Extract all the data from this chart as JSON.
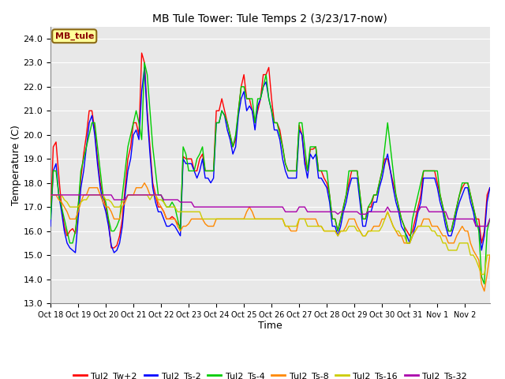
{
  "title": "MB Tule Tower: Tule Temps 2 (3/23/17-now)",
  "xlabel": "Time",
  "ylabel": "Temperature (C)",
  "ylim": [
    13.0,
    24.5
  ],
  "yticks": [
    13.0,
    14.0,
    15.0,
    16.0,
    17.0,
    18.0,
    19.0,
    20.0,
    21.0,
    22.0,
    23.0,
    24.0
  ],
  "bg_color": "#e8e8e8",
  "grid_color": "white",
  "series_colors": {
    "Tul2_Tw+2": "#ff0000",
    "Tul2_Ts-2": "#0000ff",
    "Tul2_Ts-4": "#00cc00",
    "Tul2_Ts-8": "#ff8800",
    "Tul2_Ts-16": "#cccc00",
    "Tul2_Ts-32": "#aa00aa"
  },
  "xtick_labels": [
    "Oct 18",
    "Oct 19",
    "Oct 20",
    "Oct 21",
    "Oct 22",
    "Oct 23",
    "Oct 24",
    "Oct 25",
    "Oct 26",
    "Oct 27",
    "Oct 28",
    "Oct 29",
    "Oct 30",
    "Oct 31",
    "Nov 1",
    "Nov 2"
  ],
  "station_label": "MB_tule",
  "Tul2_Tw+2": [
    16.5,
    19.5,
    19.7,
    18.3,
    17.0,
    16.2,
    15.8,
    16.0,
    16.1,
    15.9,
    17.0,
    18.2,
    19.2,
    20.0,
    21.0,
    21.0,
    20.2,
    19.0,
    18.0,
    17.5,
    17.0,
    16.4,
    15.3,
    15.3,
    15.4,
    15.8,
    16.5,
    17.8,
    19.0,
    19.5,
    20.5,
    20.5,
    20.0,
    23.4,
    23.0,
    21.0,
    19.5,
    18.0,
    17.5,
    17.0,
    17.0,
    16.8,
    16.5,
    16.5,
    16.6,
    16.5,
    16.3,
    16.2,
    19.1,
    19.0,
    19.0,
    19.0,
    18.5,
    18.5,
    19.0,
    19.2,
    18.5,
    18.5,
    18.5,
    18.5,
    21.0,
    21.0,
    21.5,
    21.0,
    20.5,
    20.0,
    19.5,
    19.8,
    21.0,
    22.0,
    22.5,
    21.5,
    21.5,
    21.0,
    20.5,
    21.0,
    21.5,
    22.5,
    22.5,
    22.8,
    21.5,
    20.5,
    20.5,
    20.2,
    19.5,
    18.8,
    18.5,
    18.5,
    18.5,
    18.5,
    20.4,
    20.0,
    19.0,
    18.5,
    19.4,
    19.4,
    19.5,
    18.5,
    18.5,
    18.2,
    18.0,
    17.5,
    16.5,
    16.5,
    16.0,
    16.5,
    17.0,
    17.5,
    18.0,
    18.5,
    18.5,
    18.5,
    17.5,
    16.5,
    16.5,
    17.0,
    17.0,
    17.5,
    17.5,
    18.0,
    18.5,
    19.0,
    19.0,
    18.5,
    18.0,
    17.5,
    17.0,
    16.5,
    16.2,
    16.0,
    15.8,
    16.0,
    16.5,
    17.0,
    17.5,
    18.5,
    18.5,
    18.5,
    18.5,
    18.5,
    18.0,
    17.5,
    17.0,
    16.5,
    16.0,
    16.0,
    16.5,
    17.0,
    17.5,
    17.8,
    18.0,
    18.0,
    17.5,
    17.0,
    16.5,
    16.5,
    15.5,
    16.0,
    17.5,
    17.8
  ],
  "Tul2_Ts-2": [
    16.2,
    18.5,
    18.8,
    17.5,
    16.8,
    16.0,
    15.5,
    15.3,
    15.2,
    15.1,
    16.5,
    17.8,
    18.5,
    19.5,
    20.5,
    20.8,
    20.0,
    18.8,
    17.8,
    17.2,
    16.8,
    16.2,
    15.4,
    15.1,
    15.2,
    15.5,
    16.2,
    17.5,
    18.5,
    19.0,
    20.0,
    20.2,
    19.8,
    21.8,
    22.8,
    20.8,
    19.2,
    17.8,
    17.2,
    16.8,
    16.8,
    16.5,
    16.2,
    16.2,
    16.3,
    16.2,
    16.0,
    15.8,
    19.0,
    18.8,
    18.8,
    18.8,
    18.5,
    18.2,
    18.5,
    19.0,
    18.2,
    18.2,
    18.0,
    18.2,
    20.5,
    20.5,
    21.0,
    20.8,
    20.2,
    19.8,
    19.2,
    19.5,
    20.8,
    21.5,
    21.8,
    21.0,
    21.2,
    21.0,
    20.2,
    21.2,
    21.5,
    22.0,
    22.2,
    21.5,
    21.0,
    20.2,
    20.2,
    19.8,
    19.0,
    18.5,
    18.2,
    18.2,
    18.2,
    18.2,
    20.2,
    20.0,
    18.8,
    18.2,
    19.2,
    19.0,
    19.2,
    18.2,
    18.2,
    18.0,
    17.8,
    17.2,
    16.2,
    16.2,
    15.8,
    16.2,
    16.8,
    17.2,
    17.8,
    18.2,
    18.2,
    18.2,
    17.2,
    16.2,
    16.2,
    16.8,
    16.8,
    17.2,
    17.2,
    17.8,
    18.2,
    18.8,
    19.2,
    18.5,
    17.8,
    17.2,
    16.8,
    16.2,
    16.0,
    15.8,
    15.5,
    15.8,
    16.2,
    16.8,
    17.2,
    18.2,
    18.2,
    18.2,
    18.2,
    18.2,
    17.8,
    17.2,
    16.8,
    16.2,
    15.8,
    15.8,
    16.2,
    16.8,
    17.2,
    17.5,
    17.8,
    17.8,
    17.2,
    16.8,
    16.2,
    16.2,
    15.2,
    15.8,
    17.2,
    17.8
  ],
  "Tul2_Ts-4": [
    16.5,
    18.5,
    18.5,
    17.5,
    17.0,
    16.5,
    16.0,
    15.5,
    15.5,
    16.0,
    17.0,
    18.5,
    19.0,
    19.5,
    20.0,
    20.5,
    20.5,
    19.5,
    18.5,
    17.5,
    17.2,
    16.5,
    16.0,
    16.0,
    16.2,
    16.5,
    17.5,
    18.5,
    19.5,
    20.0,
    20.5,
    21.0,
    20.5,
    19.8,
    23.0,
    22.5,
    21.0,
    19.5,
    18.5,
    17.5,
    17.5,
    17.2,
    17.0,
    17.0,
    17.2,
    17.0,
    16.5,
    16.0,
    19.5,
    19.2,
    18.5,
    18.5,
    18.5,
    19.0,
    19.2,
    19.5,
    18.5,
    18.5,
    18.5,
    18.5,
    20.5,
    20.5,
    21.0,
    20.8,
    20.5,
    20.0,
    19.5,
    20.0,
    21.0,
    22.0,
    22.0,
    21.5,
    21.5,
    21.5,
    20.5,
    21.5,
    21.5,
    22.0,
    22.5,
    21.5,
    21.0,
    20.5,
    20.5,
    20.0,
    19.5,
    18.8,
    18.5,
    18.5,
    18.5,
    18.5,
    20.5,
    20.5,
    19.5,
    18.5,
    19.5,
    19.5,
    19.5,
    18.5,
    18.5,
    18.5,
    18.5,
    17.5,
    16.5,
    16.5,
    16.0,
    16.5,
    17.0,
    17.5,
    18.5,
    18.5,
    18.5,
    18.5,
    17.5,
    16.5,
    16.5,
    17.0,
    17.2,
    17.5,
    17.5,
    18.0,
    18.5,
    19.5,
    20.5,
    19.5,
    18.5,
    17.5,
    17.0,
    16.5,
    16.2,
    15.5,
    15.5,
    16.5,
    17.0,
    17.5,
    18.0,
    18.5,
    18.5,
    18.5,
    18.5,
    18.5,
    18.5,
    17.5,
    17.0,
    16.5,
    16.0,
    16.0,
    16.5,
    17.0,
    17.5,
    18.0,
    18.0,
    18.0,
    17.5,
    17.0,
    16.5,
    16.0,
    14.1,
    13.8,
    16.0,
    16.5
  ],
  "Tul2_Ts-8": [
    17.5,
    17.5,
    17.5,
    17.3,
    17.2,
    17.0,
    16.8,
    16.5,
    16.5,
    16.5,
    16.8,
    17.2,
    17.5,
    17.5,
    17.8,
    17.8,
    17.8,
    17.8,
    17.5,
    17.2,
    17.0,
    17.0,
    16.8,
    16.5,
    16.5,
    16.5,
    17.0,
    17.2,
    17.5,
    17.5,
    17.5,
    17.8,
    17.8,
    17.8,
    18.0,
    17.8,
    17.5,
    17.5,
    17.5,
    17.2,
    17.0,
    16.8,
    16.5,
    16.5,
    16.5,
    16.5,
    16.2,
    16.0,
    16.2,
    16.2,
    16.3,
    16.5,
    16.5,
    16.5,
    16.5,
    16.5,
    16.3,
    16.2,
    16.2,
    16.2,
    16.5,
    16.5,
    16.5,
    16.5,
    16.5,
    16.5,
    16.5,
    16.5,
    16.5,
    16.5,
    16.5,
    16.8,
    17.0,
    16.8,
    16.5,
    16.5,
    16.5,
    16.5,
    16.5,
    16.5,
    16.5,
    16.5,
    16.5,
    16.5,
    16.5,
    16.2,
    16.2,
    16.0,
    16.0,
    16.0,
    16.5,
    16.5,
    16.5,
    16.5,
    16.5,
    16.5,
    16.5,
    16.2,
    16.2,
    16.0,
    16.0,
    16.0,
    16.0,
    16.0,
    15.8,
    16.0,
    16.0,
    16.2,
    16.5,
    16.5,
    16.5,
    16.2,
    16.0,
    15.8,
    15.8,
    16.0,
    16.0,
    16.2,
    16.2,
    16.2,
    16.5,
    16.5,
    16.8,
    16.5,
    16.2,
    16.0,
    15.8,
    15.8,
    15.5,
    15.5,
    15.5,
    15.8,
    16.0,
    16.2,
    16.2,
    16.5,
    16.5,
    16.5,
    16.2,
    16.2,
    16.2,
    16.0,
    15.8,
    15.8,
    15.5,
    15.5,
    15.5,
    15.8,
    16.0,
    16.2,
    16.0,
    16.0,
    15.5,
    15.2,
    15.0,
    14.8,
    13.8,
    13.5,
    14.2,
    15.0
  ],
  "Tul2_Ts-16": [
    17.5,
    17.5,
    17.5,
    17.5,
    17.5,
    17.3,
    17.2,
    17.0,
    17.0,
    17.0,
    17.0,
    17.2,
    17.3,
    17.3,
    17.5,
    17.5,
    17.5,
    17.5,
    17.5,
    17.5,
    17.3,
    17.3,
    17.2,
    17.0,
    17.0,
    17.0,
    17.2,
    17.3,
    17.5,
    17.5,
    17.5,
    17.5,
    17.5,
    17.5,
    17.5,
    17.5,
    17.3,
    17.5,
    17.5,
    17.3,
    17.3,
    17.2,
    17.0,
    17.0,
    17.0,
    17.0,
    16.8,
    16.8,
    16.8,
    16.8,
    16.8,
    16.8,
    16.8,
    16.8,
    16.8,
    16.5,
    16.5,
    16.5,
    16.5,
    16.5,
    16.5,
    16.5,
    16.5,
    16.5,
    16.5,
    16.5,
    16.5,
    16.5,
    16.5,
    16.5,
    16.5,
    16.5,
    16.5,
    16.5,
    16.5,
    16.5,
    16.5,
    16.5,
    16.5,
    16.5,
    16.5,
    16.5,
    16.5,
    16.5,
    16.5,
    16.2,
    16.2,
    16.2,
    16.2,
    16.2,
    16.5,
    16.5,
    16.5,
    16.2,
    16.2,
    16.2,
    16.2,
    16.2,
    16.2,
    16.0,
    16.0,
    16.0,
    16.0,
    16.0,
    15.8,
    16.0,
    16.0,
    16.0,
    16.2,
    16.2,
    16.2,
    16.0,
    16.0,
    15.8,
    15.8,
    16.0,
    16.0,
    16.0,
    16.0,
    16.0,
    16.2,
    16.5,
    16.8,
    16.5,
    16.2,
    16.0,
    16.0,
    15.8,
    15.8,
    15.5,
    15.5,
    15.8,
    16.0,
    16.2,
    16.2,
    16.2,
    16.2,
    16.2,
    16.0,
    16.0,
    15.8,
    15.8,
    15.5,
    15.5,
    15.2,
    15.2,
    15.2,
    15.2,
    15.5,
    15.5,
    15.5,
    15.5,
    15.0,
    15.0,
    14.8,
    14.5,
    14.2,
    14.2,
    15.0,
    15.0
  ],
  "Tul2_Ts-32": [
    17.5,
    17.5,
    17.5,
    17.5,
    17.5,
    17.5,
    17.5,
    17.5,
    17.5,
    17.5,
    17.5,
    17.5,
    17.5,
    17.5,
    17.5,
    17.5,
    17.5,
    17.5,
    17.5,
    17.5,
    17.5,
    17.5,
    17.5,
    17.3,
    17.3,
    17.3,
    17.3,
    17.3,
    17.5,
    17.5,
    17.5,
    17.5,
    17.5,
    17.5,
    17.5,
    17.5,
    17.5,
    17.5,
    17.5,
    17.5,
    17.5,
    17.3,
    17.3,
    17.3,
    17.3,
    17.3,
    17.3,
    17.2,
    17.2,
    17.2,
    17.2,
    17.2,
    17.0,
    17.0,
    17.0,
    17.0,
    17.0,
    17.0,
    17.0,
    17.0,
    17.0,
    17.0,
    17.0,
    17.0,
    17.0,
    17.0,
    17.0,
    17.0,
    17.0,
    17.0,
    17.0,
    17.0,
    17.0,
    17.0,
    17.0,
    17.0,
    17.0,
    17.0,
    17.0,
    17.0,
    17.0,
    17.0,
    17.0,
    17.0,
    17.0,
    16.8,
    16.8,
    16.8,
    16.8,
    16.8,
    17.0,
    17.0,
    17.0,
    16.8,
    16.8,
    16.8,
    16.8,
    16.8,
    16.8,
    16.8,
    16.8,
    16.8,
    16.8,
    16.8,
    16.7,
    16.8,
    16.8,
    16.8,
    16.8,
    16.8,
    16.8,
    16.8,
    16.7,
    16.7,
    16.7,
    16.8,
    16.8,
    16.8,
    16.8,
    16.8,
    16.8,
    16.8,
    17.0,
    16.8,
    16.8,
    16.8,
    16.8,
    16.8,
    16.8,
    16.8,
    16.8,
    16.8,
    16.8,
    16.8,
    17.0,
    17.0,
    17.0,
    16.8,
    16.8,
    16.8,
    16.8,
    16.8,
    16.8,
    16.8,
    16.5,
    16.5,
    16.5,
    16.5,
    16.5,
    16.5,
    16.5,
    16.5,
    16.5,
    16.5,
    16.2,
    16.2,
    16.2,
    16.2,
    16.2,
    16.5
  ]
}
